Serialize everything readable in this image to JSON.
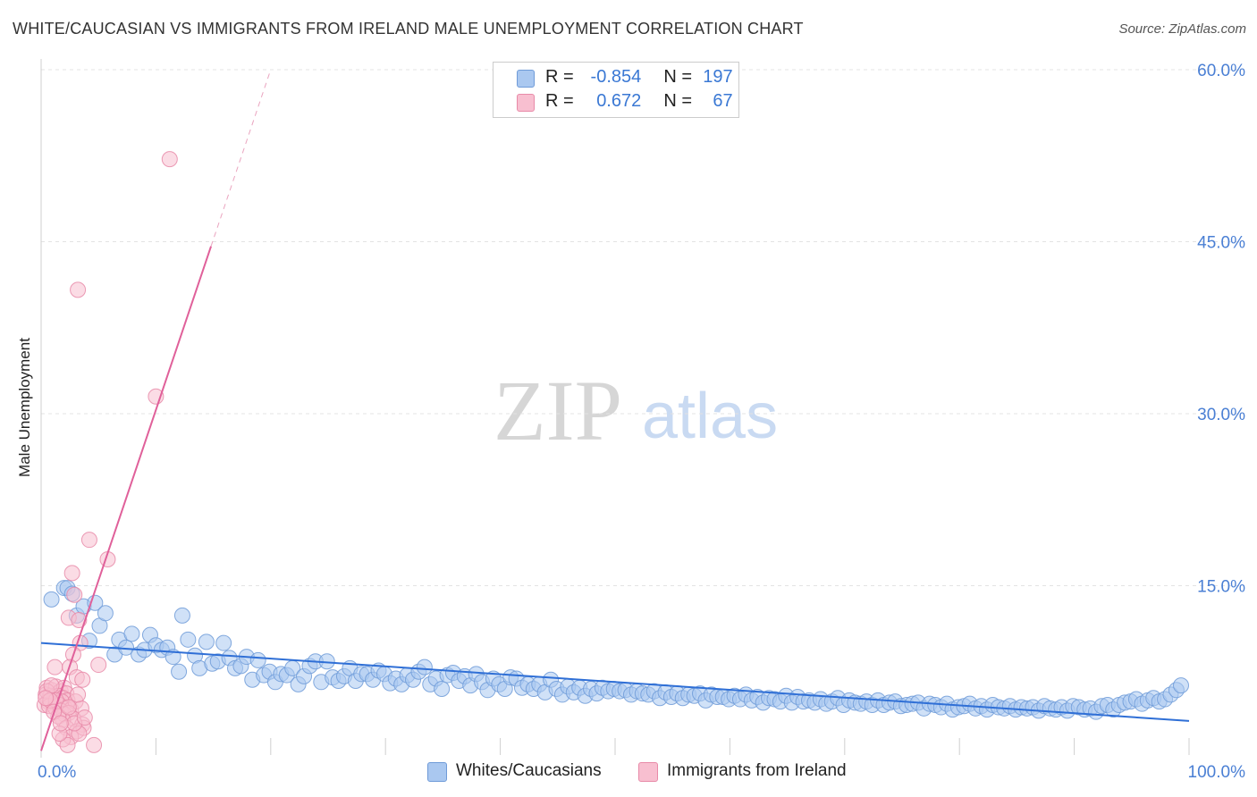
{
  "title": "WHITE/CAUCASIAN VS IMMIGRANTS FROM IRELAND MALE UNEMPLOYMENT CORRELATION CHART",
  "source": "Source: ZipAtlas.com",
  "watermark": {
    "zip": "ZIP",
    "atlas": "atlas"
  },
  "legend": [
    {
      "r_label": "R =",
      "r_value": "-0.854",
      "n_label": "N =",
      "n_value": "197",
      "color": "#aac8f0",
      "border": "#6f9bd8"
    },
    {
      "r_label": "R =",
      "r_value": "0.672",
      "n_label": "N =",
      "n_value": "67",
      "color": "#f8bfd0",
      "border": "#e88aa8"
    }
  ],
  "bottom_legend": [
    {
      "label": "Whites/Caucasians",
      "color": "#aac8f0",
      "border": "#6f9bd8"
    },
    {
      "label": "Immigrants from Ireland",
      "color": "#f8bfd0",
      "border": "#e88aa8"
    }
  ],
  "chart_data": {
    "type": "scatter",
    "title": "WHITE/CAUCASIAN VS IMMIGRANTS FROM IRELAND MALE UNEMPLOYMENT CORRELATION CHART",
    "xlabel": "",
    "ylabel": "Male Unemployment",
    "xlim": [
      0,
      100
    ],
    "ylim": [
      0,
      60
    ],
    "x_tick_labels": [
      "0.0%",
      "100.0%"
    ],
    "y_ticks": [
      15,
      30,
      45,
      60
    ],
    "y_tick_labels": [
      "15.0%",
      "30.0%",
      "45.0%",
      "60.0%"
    ],
    "grid": true,
    "series": [
      {
        "name": "Whites/Caucasians",
        "color": "#6f9bd8",
        "fill": "#aac8f0",
        "r": -0.854,
        "n": 197,
        "trend": {
          "x": [
            0,
            100
          ],
          "y": [
            10.0,
            3.2
          ],
          "color": "#2f6fd6"
        },
        "points": [
          [
            0.9,
            13.8
          ],
          [
            2.0,
            14.8
          ],
          [
            2.3,
            14.8
          ],
          [
            2.7,
            14.3
          ],
          [
            3.1,
            12.4
          ],
          [
            3.7,
            13.2
          ],
          [
            4.2,
            10.2
          ],
          [
            4.7,
            13.5
          ],
          [
            5.1,
            11.5
          ],
          [
            5.6,
            12.6
          ],
          [
            6.4,
            9.0
          ],
          [
            6.8,
            10.3
          ],
          [
            7.4,
            9.6
          ],
          [
            7.9,
            10.8
          ],
          [
            8.5,
            9.0
          ],
          [
            9.0,
            9.4
          ],
          [
            9.5,
            10.7
          ],
          [
            10.0,
            9.8
          ],
          [
            10.5,
            9.4
          ],
          [
            11.0,
            9.6
          ],
          [
            11.5,
            8.8
          ],
          [
            12.0,
            7.5
          ],
          [
            12.3,
            12.4
          ],
          [
            12.8,
            10.3
          ],
          [
            13.4,
            8.9
          ],
          [
            13.8,
            7.8
          ],
          [
            14.4,
            10.1
          ],
          [
            14.9,
            8.2
          ],
          [
            15.4,
            8.4
          ],
          [
            15.9,
            10.0
          ],
          [
            16.4,
            8.7
          ],
          [
            16.9,
            7.8
          ],
          [
            17.4,
            8.0
          ],
          [
            17.9,
            8.8
          ],
          [
            18.4,
            6.8
          ],
          [
            18.9,
            8.5
          ],
          [
            19.4,
            7.2
          ],
          [
            19.9,
            7.5
          ],
          [
            20.4,
            6.6
          ],
          [
            20.9,
            7.3
          ],
          [
            21.4,
            7.2
          ],
          [
            21.9,
            7.8
          ],
          [
            22.4,
            6.4
          ],
          [
            22.9,
            7.1
          ],
          [
            23.4,
            8.0
          ],
          [
            23.9,
            8.4
          ],
          [
            24.4,
            6.6
          ],
          [
            24.9,
            8.4
          ],
          [
            25.4,
            7.0
          ],
          [
            25.9,
            6.7
          ],
          [
            26.4,
            7.1
          ],
          [
            26.9,
            7.8
          ],
          [
            27.4,
            6.7
          ],
          [
            27.9,
            7.3
          ],
          [
            28.4,
            7.3
          ],
          [
            28.9,
            6.8
          ],
          [
            29.4,
            7.6
          ],
          [
            29.9,
            7.3
          ],
          [
            30.4,
            6.5
          ],
          [
            30.9,
            6.9
          ],
          [
            31.4,
            6.4
          ],
          [
            31.9,
            7.2
          ],
          [
            32.4,
            6.8
          ],
          [
            32.9,
            7.5
          ],
          [
            33.4,
            7.9
          ],
          [
            33.9,
            6.4
          ],
          [
            34.4,
            6.9
          ],
          [
            34.9,
            6.0
          ],
          [
            35.4,
            7.2
          ],
          [
            35.9,
            7.4
          ],
          [
            36.4,
            6.7
          ],
          [
            36.9,
            7.1
          ],
          [
            37.4,
            6.3
          ],
          [
            37.9,
            7.3
          ],
          [
            38.4,
            6.6
          ],
          [
            38.9,
            5.9
          ],
          [
            39.4,
            6.9
          ],
          [
            39.9,
            6.4
          ],
          [
            40.4,
            6.0
          ],
          [
            40.9,
            7.0
          ],
          [
            41.4,
            6.9
          ],
          [
            41.9,
            6.1
          ],
          [
            42.4,
            6.4
          ],
          [
            42.9,
            6.0
          ],
          [
            43.4,
            6.4
          ],
          [
            43.9,
            5.7
          ],
          [
            44.4,
            6.8
          ],
          [
            44.9,
            6.0
          ],
          [
            45.4,
            5.5
          ],
          [
            45.9,
            6.2
          ],
          [
            46.4,
            5.7
          ],
          [
            46.9,
            6.1
          ],
          [
            47.4,
            5.4
          ],
          [
            47.9,
            6.0
          ],
          [
            48.4,
            5.6
          ],
          [
            48.9,
            6.1
          ],
          [
            49.4,
            5.8
          ],
          [
            49.9,
            6.0
          ],
          [
            50.4,
            5.8
          ],
          [
            50.9,
            5.9
          ],
          [
            51.4,
            5.5
          ],
          [
            51.9,
            5.8
          ],
          [
            52.4,
            5.6
          ],
          [
            52.9,
            5.5
          ],
          [
            53.4,
            5.8
          ],
          [
            53.9,
            5.2
          ],
          [
            54.4,
            5.7
          ],
          [
            54.9,
            5.3
          ],
          [
            55.4,
            5.6
          ],
          [
            55.9,
            5.2
          ],
          [
            56.4,
            5.5
          ],
          [
            56.9,
            5.4
          ],
          [
            57.4,
            5.6
          ],
          [
            57.9,
            5.0
          ],
          [
            58.4,
            5.5
          ],
          [
            58.9,
            5.3
          ],
          [
            59.4,
            5.3
          ],
          [
            59.9,
            5.1
          ],
          [
            60.4,
            5.4
          ],
          [
            60.9,
            5.1
          ],
          [
            61.4,
            5.5
          ],
          [
            61.9,
            5.0
          ],
          [
            62.4,
            5.3
          ],
          [
            62.9,
            4.8
          ],
          [
            63.4,
            5.2
          ],
          [
            63.9,
            5.1
          ],
          [
            64.4,
            4.9
          ],
          [
            64.9,
            5.4
          ],
          [
            65.4,
            4.8
          ],
          [
            65.9,
            5.3
          ],
          [
            66.4,
            4.9
          ],
          [
            66.9,
            5.0
          ],
          [
            67.4,
            4.8
          ],
          [
            67.9,
            5.1
          ],
          [
            68.4,
            4.7
          ],
          [
            68.9,
            4.9
          ],
          [
            69.4,
            5.2
          ],
          [
            69.9,
            4.6
          ],
          [
            70.4,
            5.0
          ],
          [
            70.9,
            4.8
          ],
          [
            71.4,
            4.7
          ],
          [
            71.9,
            4.9
          ],
          [
            72.4,
            4.6
          ],
          [
            72.9,
            5.0
          ],
          [
            73.4,
            4.6
          ],
          [
            73.9,
            4.8
          ],
          [
            74.4,
            4.9
          ],
          [
            74.9,
            4.5
          ],
          [
            75.4,
            4.6
          ],
          [
            75.9,
            4.7
          ],
          [
            76.4,
            4.8
          ],
          [
            76.9,
            4.3
          ],
          [
            77.4,
            4.7
          ],
          [
            77.9,
            4.6
          ],
          [
            78.4,
            4.4
          ],
          [
            78.9,
            4.7
          ],
          [
            79.4,
            4.2
          ],
          [
            79.9,
            4.4
          ],
          [
            80.4,
            4.5
          ],
          [
            80.9,
            4.7
          ],
          [
            81.4,
            4.3
          ],
          [
            81.9,
            4.5
          ],
          [
            82.4,
            4.2
          ],
          [
            82.9,
            4.6
          ],
          [
            83.4,
            4.4
          ],
          [
            83.9,
            4.3
          ],
          [
            84.4,
            4.5
          ],
          [
            84.9,
            4.2
          ],
          [
            85.4,
            4.4
          ],
          [
            85.9,
            4.3
          ],
          [
            86.4,
            4.4
          ],
          [
            86.9,
            4.1
          ],
          [
            87.4,
            4.5
          ],
          [
            87.9,
            4.3
          ],
          [
            88.4,
            4.2
          ],
          [
            88.9,
            4.4
          ],
          [
            89.4,
            4.1
          ],
          [
            89.9,
            4.5
          ],
          [
            90.4,
            4.4
          ],
          [
            90.9,
            4.2
          ],
          [
            91.4,
            4.3
          ],
          [
            91.9,
            4.0
          ],
          [
            92.4,
            4.5
          ],
          [
            92.9,
            4.6
          ],
          [
            93.4,
            4.2
          ],
          [
            93.9,
            4.6
          ],
          [
            94.4,
            4.8
          ],
          [
            94.9,
            4.9
          ],
          [
            95.4,
            5.1
          ],
          [
            95.9,
            4.7
          ],
          [
            96.4,
            5.0
          ],
          [
            96.9,
            5.2
          ],
          [
            97.4,
            4.9
          ],
          [
            97.9,
            5.1
          ],
          [
            98.4,
            5.5
          ],
          [
            98.9,
            5.9
          ],
          [
            99.3,
            6.3
          ]
        ]
      },
      {
        "name": "Immigrants from Ireland",
        "color": "#e88aa8",
        "fill": "#f8bfd0",
        "r": 0.672,
        "n": 67,
        "trend": {
          "x": [
            0,
            14.8
          ],
          "y": [
            0.6,
            44.6
          ],
          "dash_to": {
            "x": 20.0,
            "y": 60.0
          },
          "color": "#e0609a"
        },
        "points": [
          [
            11.2,
            52.2
          ],
          [
            3.2,
            40.8
          ],
          [
            10.0,
            31.5
          ],
          [
            4.2,
            19.0
          ],
          [
            5.8,
            17.3
          ],
          [
            2.7,
            16.1
          ],
          [
            2.9,
            14.2
          ],
          [
            2.4,
            12.2
          ],
          [
            3.3,
            12.0
          ],
          [
            3.4,
            10.0
          ],
          [
            2.8,
            9.0
          ],
          [
            5.0,
            8.1
          ],
          [
            1.2,
            7.9
          ],
          [
            2.5,
            7.9
          ],
          [
            3.1,
            7.0
          ],
          [
            3.6,
            6.8
          ],
          [
            0.5,
            6.1
          ],
          [
            0.9,
            5.9
          ],
          [
            1.3,
            6.2
          ],
          [
            1.7,
            5.8
          ],
          [
            2.0,
            6.1
          ],
          [
            2.2,
            5.6
          ],
          [
            0.4,
            5.5
          ],
          [
            0.8,
            5.4
          ],
          [
            1.1,
            5.3
          ],
          [
            1.5,
            5.4
          ],
          [
            1.9,
            5.2
          ],
          [
            2.3,
            5.0
          ],
          [
            0.6,
            4.9
          ],
          [
            1.0,
            4.8
          ],
          [
            1.4,
            4.7
          ],
          [
            1.8,
            4.9
          ],
          [
            0.3,
            4.6
          ],
          [
            0.7,
            4.5
          ],
          [
            1.2,
            4.4
          ],
          [
            1.6,
            4.6
          ],
          [
            2.1,
            4.3
          ],
          [
            2.6,
            4.2
          ],
          [
            3.0,
            4.9
          ],
          [
            3.5,
            4.3
          ],
          [
            0.5,
            5.8
          ],
          [
            0.9,
            6.3
          ],
          [
            1.3,
            5.0
          ],
          [
            1.7,
            4.1
          ],
          [
            2.0,
            3.8
          ],
          [
            2.4,
            3.9
          ],
          [
            2.8,
            3.4
          ],
          [
            3.2,
            5.5
          ],
          [
            3.6,
            2.9
          ],
          [
            1.9,
            3.3
          ],
          [
            1.5,
            3.6
          ],
          [
            2.2,
            2.6
          ],
          [
            3.1,
            2.3
          ],
          [
            3.7,
            2.6
          ],
          [
            2.6,
            1.8
          ],
          [
            1.9,
            1.6
          ],
          [
            2.3,
            1.1
          ],
          [
            4.6,
            1.1
          ],
          [
            1.6,
            2.1
          ],
          [
            3.3,
            2.1
          ],
          [
            2.9,
            3.0
          ],
          [
            0.8,
            5.0
          ],
          [
            1.1,
            4.0
          ],
          [
            0.4,
            5.2
          ],
          [
            1.7,
            3.0
          ],
          [
            2.4,
            4.4
          ],
          [
            3.8,
            3.5
          ]
        ]
      }
    ]
  }
}
